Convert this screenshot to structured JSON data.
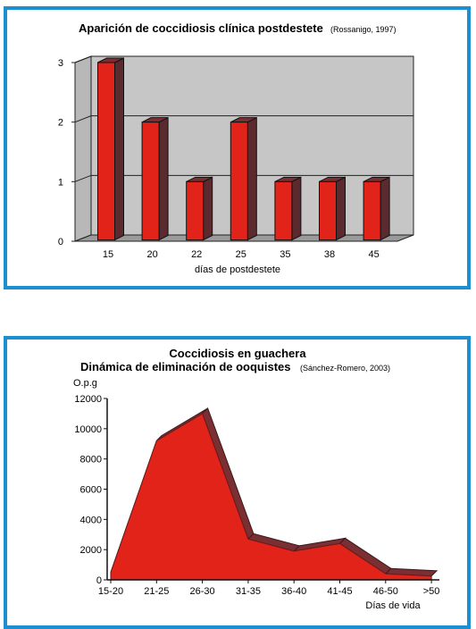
{
  "chart_data": [
    {
      "type": "bar",
      "title": "Aparición de coccidiosis clínica postdestete",
      "citation": "(Rossanigo, 1997)",
      "xlabel": "días de postdestete",
      "ylabel": "",
      "categories": [
        "15",
        "20",
        "22",
        "25",
        "35",
        "38",
        "45"
      ],
      "values": [
        3,
        2,
        1,
        2,
        1,
        1,
        1
      ],
      "ylim": [
        0,
        3
      ],
      "yticks": [
        "0",
        "1",
        "2",
        "3"
      ],
      "grid": true,
      "legend": "none",
      "style": "3d",
      "colors": {
        "bar_front": "#e2231a",
        "bar_side": "#5a2a2e",
        "bar_top": "#7a2f33",
        "wall": "#c6c6c6",
        "floor": "#9a9a9a"
      }
    },
    {
      "type": "area",
      "title": "Coccidiosis en guachera",
      "subtitle": "Dinámica de eliminación de ooquistes",
      "citation": "(Sánchez-Romero, 2003)",
      "ylabel": "O.p.g",
      "xlabel": "Días de vida",
      "categories": [
        "15-20",
        "21-25",
        "26-30",
        "31-35",
        "36-40",
        "41-45",
        "46-50",
        ">50"
      ],
      "values": [
        500,
        9200,
        11000,
        2700,
        1900,
        2400,
        400,
        250
      ],
      "ylim": [
        0,
        12000
      ],
      "yticks": [
        "0",
        "2000",
        "4000",
        "6000",
        "8000",
        "10000",
        "12000"
      ],
      "grid": false,
      "legend": "none",
      "style": "3d",
      "colors": {
        "area_front": "#e2231a",
        "area_side": "#7a2f33"
      }
    }
  ]
}
